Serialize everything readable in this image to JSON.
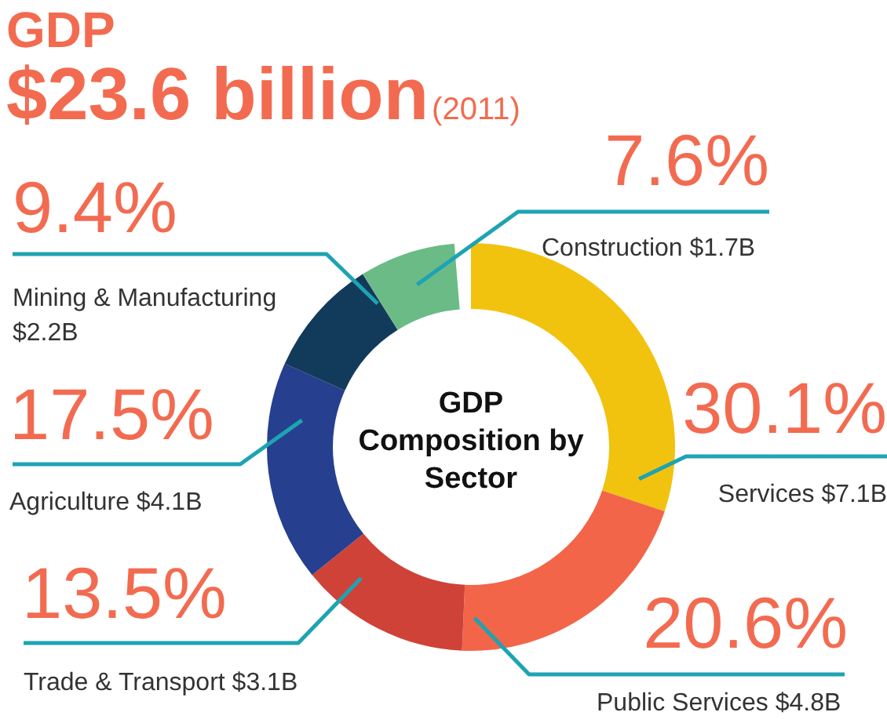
{
  "chart_data": {
    "type": "donut",
    "title": "GDP",
    "subtitle": "$23.6 billion",
    "annotations": [
      "(2011)",
      "GDP Composition by Sector"
    ],
    "categories": [
      "Services $7.1B",
      "Public Services $4.8B",
      "Trade & Transport $3.1B",
      "Agriculture $4.1B",
      "Mining & Manufacturing $2.2B",
      "Construction $1.7B"
    ],
    "values": [
      30.1,
      20.6,
      13.5,
      17.5,
      9.4,
      7.6
    ],
    "value_labels": [
      "30.1%",
      "20.6%",
      "13.5%",
      "17.5%",
      "9.4%",
      "7.6%"
    ],
    "colors": [
      "#f1c30f",
      "#f26549",
      "#cf4238",
      "#263f8e",
      "#123a5b",
      "#6bbb86"
    ]
  }
}
